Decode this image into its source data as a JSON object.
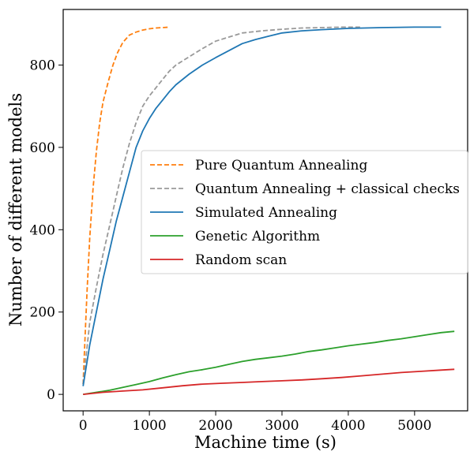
{
  "chart_data": {
    "type": "line",
    "title": "",
    "xlabel": "Machine time (s)",
    "ylabel": "Number of different models",
    "xlim": [
      -300,
      5800
    ],
    "ylim": [
      -40,
      935
    ],
    "x_ticks": [
      0,
      1000,
      2000,
      3000,
      4000,
      5000
    ],
    "y_ticks": [
      0,
      200,
      400,
      600,
      800
    ],
    "x_tick_labels": [
      "0",
      "1000",
      "2000",
      "3000",
      "4000",
      "5000"
    ],
    "y_tick_labels": [
      "0",
      "200",
      "400",
      "600",
      "800"
    ],
    "grid": false,
    "legend_position": "center-right",
    "series": [
      {
        "name": "Pure Quantum Annealing",
        "color": "#ff7f0e",
        "dash": "dashed",
        "x": [
          0,
          30,
          60,
          100,
          150,
          200,
          250,
          300,
          380,
          450,
          520,
          600,
          700,
          800,
          900,
          1000,
          1100,
          1200,
          1300
        ],
        "y": [
          25,
          140,
          250,
          380,
          500,
          590,
          660,
          710,
          760,
          800,
          830,
          855,
          873,
          880,
          885,
          888,
          890,
          891,
          892
        ]
      },
      {
        "name": "Quantum Annealing  + classical checks",
        "color": "#999999",
        "dash": "dashed",
        "x": [
          0,
          50,
          100,
          200,
          300,
          400,
          500,
          600,
          700,
          800,
          900,
          1000,
          1100,
          1200,
          1300,
          1400,
          1600,
          1800,
          2000,
          2200,
          2400,
          2700,
          3000,
          3300,
          3600,
          3900,
          4200
        ],
        "y": [
          25,
          100,
          175,
          260,
          340,
          410,
          480,
          550,
          610,
          660,
          700,
          725,
          745,
          765,
          785,
          800,
          820,
          840,
          858,
          868,
          878,
          883,
          887,
          890,
          891,
          892,
          892
        ]
      },
      {
        "name": "Simulated Annealing",
        "color": "#1f77b4",
        "dash": "solid",
        "x": [
          0,
          50,
          100,
          200,
          300,
          400,
          500,
          600,
          700,
          800,
          900,
          1000,
          1100,
          1200,
          1300,
          1400,
          1600,
          1800,
          2000,
          2200,
          2400,
          2600,
          2800,
          3000,
          3300,
          3600,
          4000,
          4500,
          5000,
          5400
        ],
        "y": [
          20,
          70,
          120,
          200,
          280,
          350,
          420,
          480,
          540,
          600,
          640,
          670,
          695,
          715,
          735,
          752,
          778,
          800,
          818,
          835,
          852,
          862,
          870,
          878,
          883,
          886,
          889,
          891,
          892,
          892
        ]
      },
      {
        "name": "Genetic Algorithm",
        "color": "#2ca02c",
        "dash": "solid",
        "x": [
          0,
          200,
          400,
          600,
          800,
          1000,
          1200,
          1400,
          1600,
          1800,
          2000,
          2200,
          2400,
          2600,
          2800,
          3000,
          3200,
          3400,
          3600,
          3800,
          4000,
          4200,
          4400,
          4600,
          4800,
          5000,
          5200,
          5400,
          5600
        ],
        "y": [
          0,
          5,
          10,
          17,
          24,
          31,
          40,
          48,
          55,
          60,
          66,
          73,
          80,
          85,
          89,
          93,
          98,
          104,
          108,
          113,
          118,
          122,
          126,
          131,
          135,
          140,
          145,
          150,
          153
        ]
      },
      {
        "name": "Random scan",
        "color": "#d62728",
        "dash": "solid",
        "x": [
          0,
          300,
          600,
          900,
          1200,
          1500,
          1800,
          2100,
          2400,
          2700,
          3000,
          3300,
          3600,
          3900,
          4200,
          4500,
          4800,
          5100,
          5400,
          5600
        ],
        "y": [
          0,
          5,
          8,
          11,
          16,
          21,
          25,
          27,
          29,
          31,
          33,
          35,
          38,
          41,
          45,
          49,
          53,
          56,
          59,
          61
        ]
      }
    ]
  }
}
